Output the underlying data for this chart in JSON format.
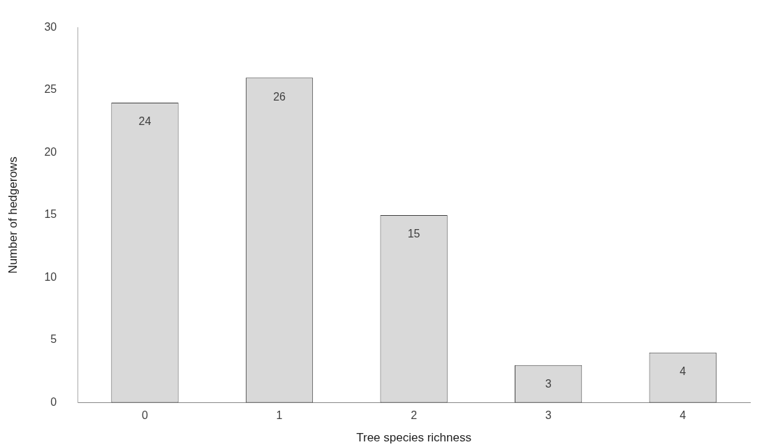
{
  "chart_data": {
    "type": "bar",
    "xlabel": "Tree species richness",
    "ylabel": "Number of hedgerows",
    "categories": [
      "0",
      "1",
      "2",
      "3",
      "4"
    ],
    "values": [
      24,
      26,
      15,
      3,
      4
    ],
    "color": "#d9d9d9",
    "ylim": [
      0,
      30
    ],
    "yticks": [
      0,
      5,
      10,
      15,
      20,
      25,
      30
    ],
    "grid": false,
    "data_labels": true
  }
}
